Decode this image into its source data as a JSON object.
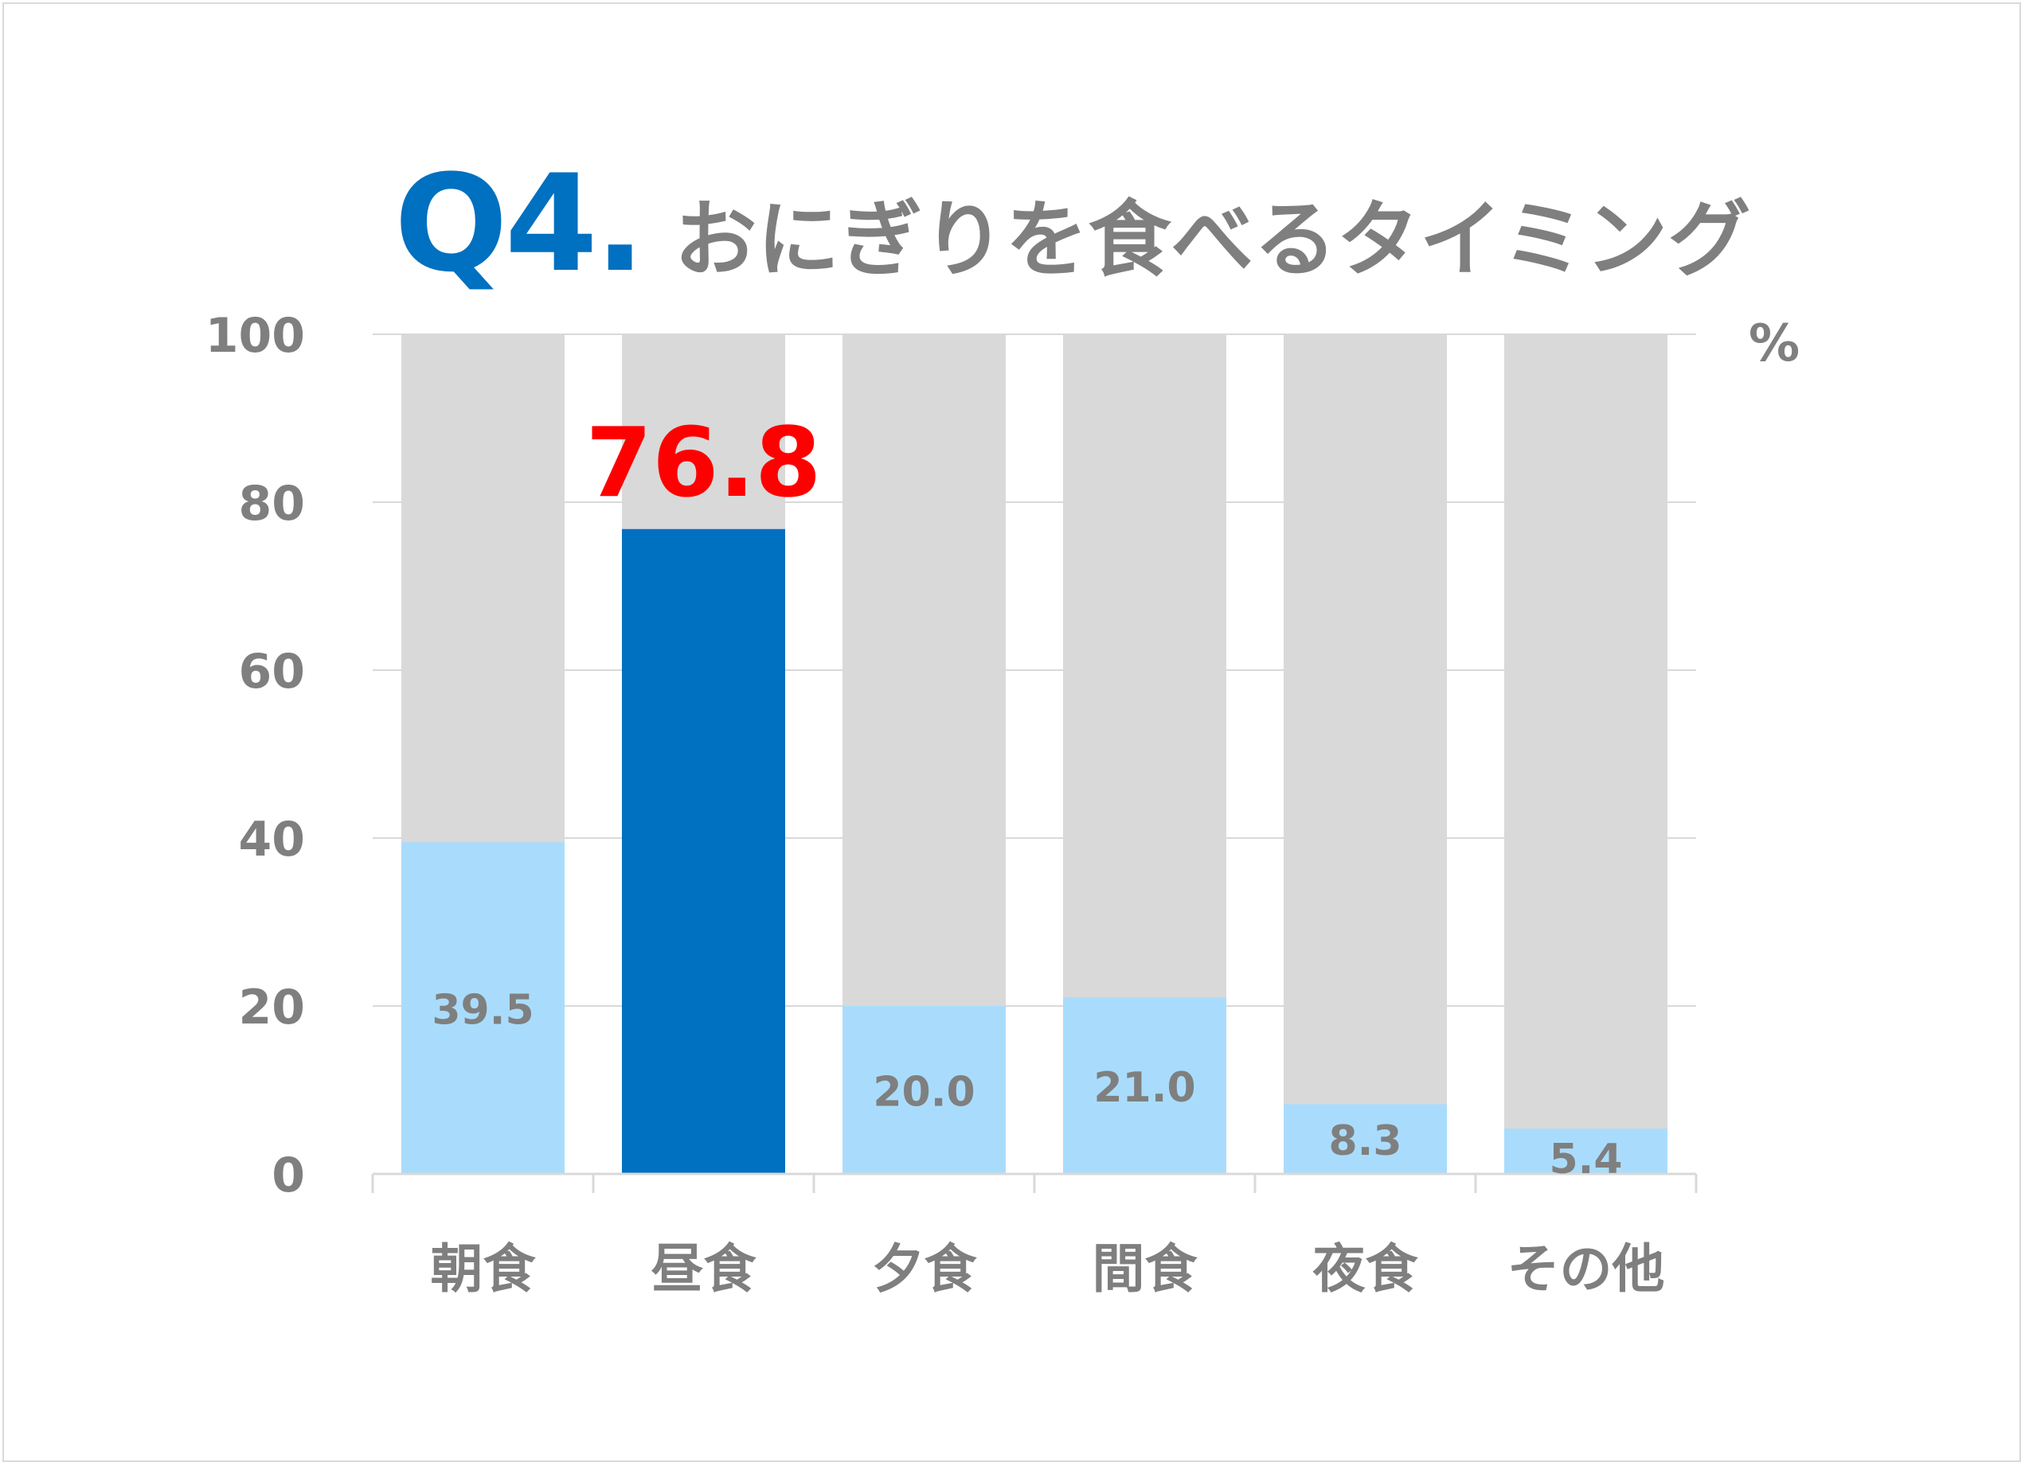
{
  "title": {
    "prefix": "Q4.",
    "text": "おにぎりを食べるタイミング"
  },
  "colors": {
    "accent": "#0070c0",
    "bar_normal": "#a9dcfc",
    "bar_highlight": "#0070c0",
    "bar_background": "#d9d9d9",
    "highlight_label": "#ff0000",
    "text_gray": "#7f7f7f",
    "grid": "#d9d9d9"
  },
  "chart_data": {
    "type": "bar",
    "categories": [
      "朝食",
      "昼食",
      "夕食",
      "間食",
      "夜食",
      "その他"
    ],
    "values": [
      39.5,
      76.8,
      20.0,
      21.0,
      8.3,
      5.4
    ],
    "value_labels": [
      "39.5",
      "76.8",
      "20.0",
      "21.0",
      "8.3",
      "5.4"
    ],
    "highlight_index": 1,
    "background_value": 100,
    "ylim": [
      0,
      100
    ],
    "yticks": [
      0,
      20,
      40,
      60,
      80,
      100
    ],
    "ytick_labels": [
      "0",
      "20",
      "40",
      "60",
      "80",
      "100"
    ],
    "unit": "%",
    "grid": true,
    "legend": "none"
  }
}
